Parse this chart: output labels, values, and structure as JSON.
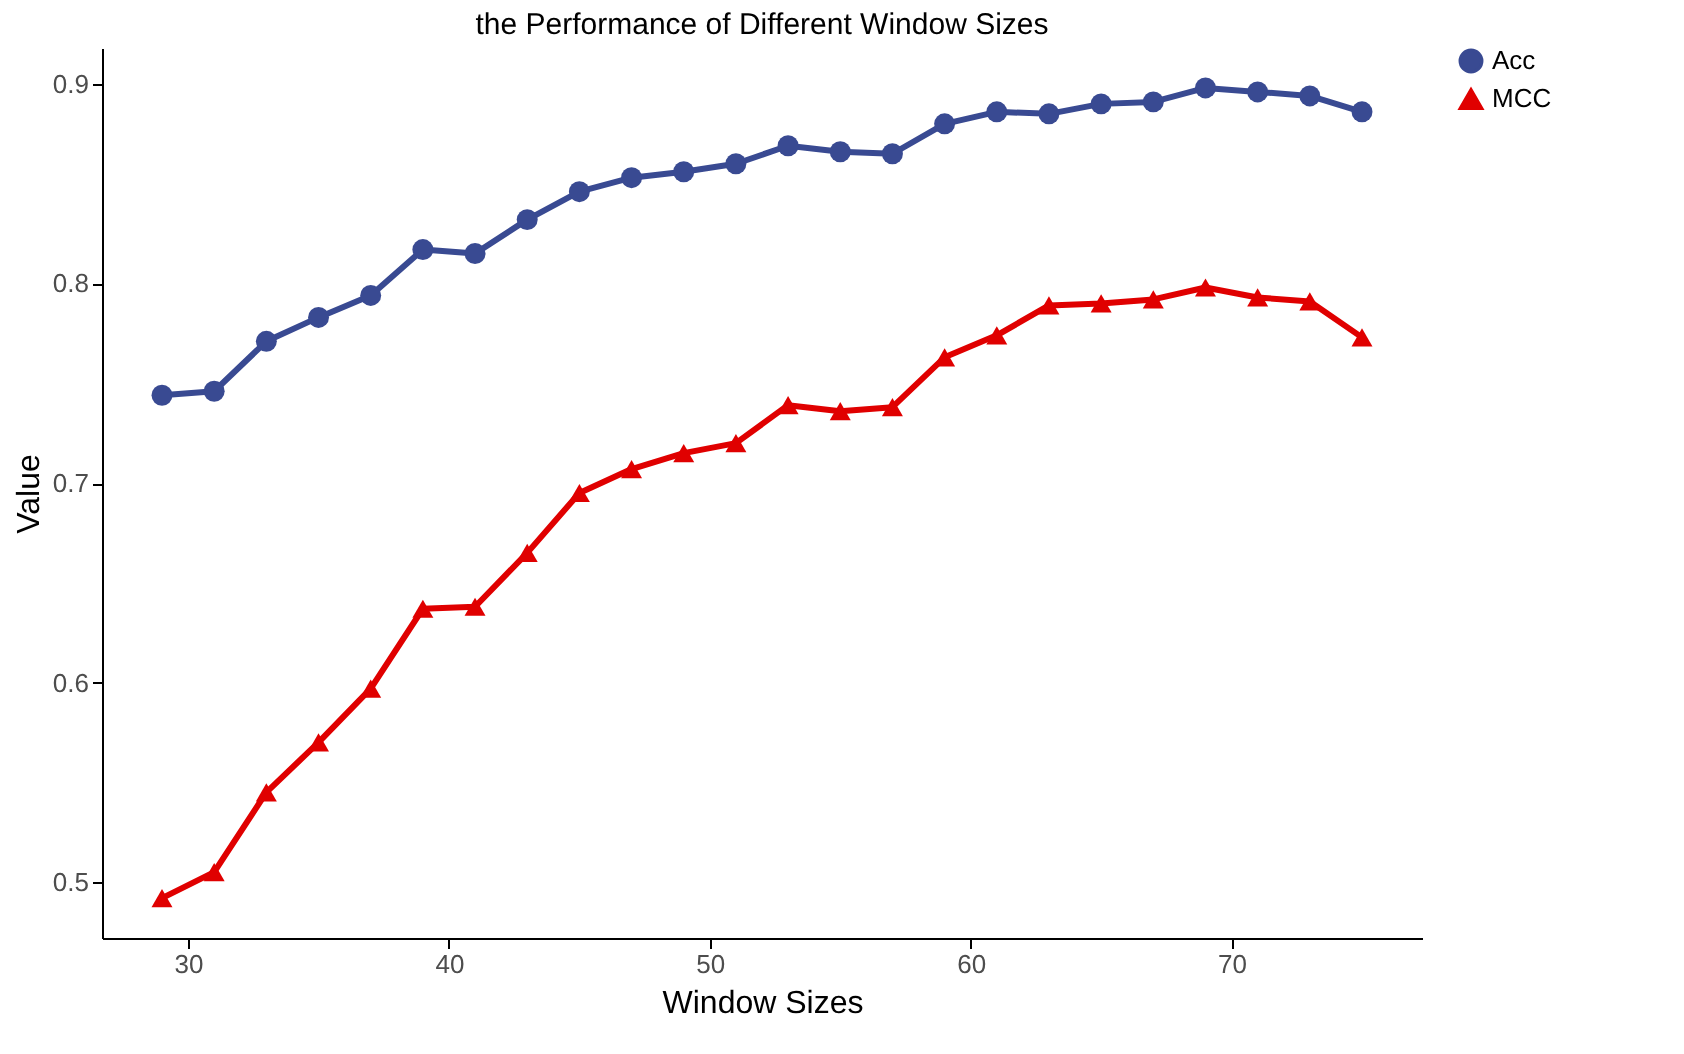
{
  "chart_data": {
    "type": "line",
    "title": "the Performance of Different Window Sizes",
    "xlabel": "Window Sizes",
    "ylabel": "Value",
    "x": [
      29,
      31,
      33,
      35,
      37,
      39,
      41,
      43,
      45,
      47,
      49,
      51,
      53,
      55,
      57,
      59,
      61,
      63,
      65,
      67,
      69,
      71,
      73,
      75
    ],
    "series": [
      {
        "name": "Acc",
        "color": "#394a92",
        "marker": "circle",
        "values": [
          0.744,
          0.746,
          0.771,
          0.783,
          0.794,
          0.817,
          0.815,
          0.832,
          0.846,
          0.853,
          0.856,
          0.86,
          0.869,
          0.866,
          0.865,
          0.88,
          0.886,
          0.885,
          0.89,
          0.891,
          0.898,
          0.896,
          0.894,
          0.886
        ]
      },
      {
        "name": "MCC",
        "color": "#e00000",
        "marker": "triangle",
        "values": [
          0.492,
          0.505,
          0.545,
          0.57,
          0.597,
          0.637,
          0.638,
          0.665,
          0.695,
          0.707,
          0.715,
          0.72,
          0.739,
          0.736,
          0.738,
          0.763,
          0.774,
          0.789,
          0.79,
          0.792,
          0.798,
          0.793,
          0.791,
          0.773
        ]
      }
    ],
    "xlim": [
      26.7,
      77.3
    ],
    "ylim": [
      0.472,
      0.918
    ],
    "xticks": [
      30,
      40,
      50,
      60,
      70
    ],
    "yticks": [
      0.5,
      0.6,
      0.7,
      0.8,
      0.9
    ],
    "grid": false,
    "legend": "right",
    "line_style": "solid"
  }
}
